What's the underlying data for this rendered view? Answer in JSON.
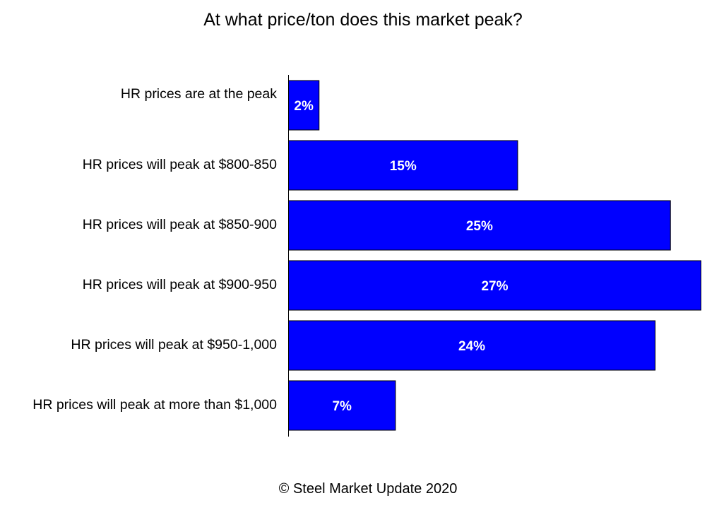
{
  "chart_data": {
    "type": "bar",
    "orientation": "horizontal",
    "title": "At what price/ton does this market peak?",
    "categories": [
      "HR prices are at the peak",
      "HR prices will peak at $800-850",
      "HR prices will peak at $850-900",
      "HR prices will peak at $900-950",
      "HR prices will peak at $950-1,000",
      "HR prices will peak at more than $1,000"
    ],
    "values": [
      2,
      15,
      25,
      27,
      24,
      7
    ],
    "value_labels": [
      "2%",
      "15%",
      "25%",
      "27%",
      "24%",
      "7%"
    ],
    "unit": "%",
    "xlim": [
      0,
      27
    ],
    "bar_color": "#0000ff",
    "bar_edge_color": "#000000",
    "label_color": "#ffffff",
    "grid": false,
    "legend": false,
    "footer": "© Steel Market Update 2020"
  }
}
